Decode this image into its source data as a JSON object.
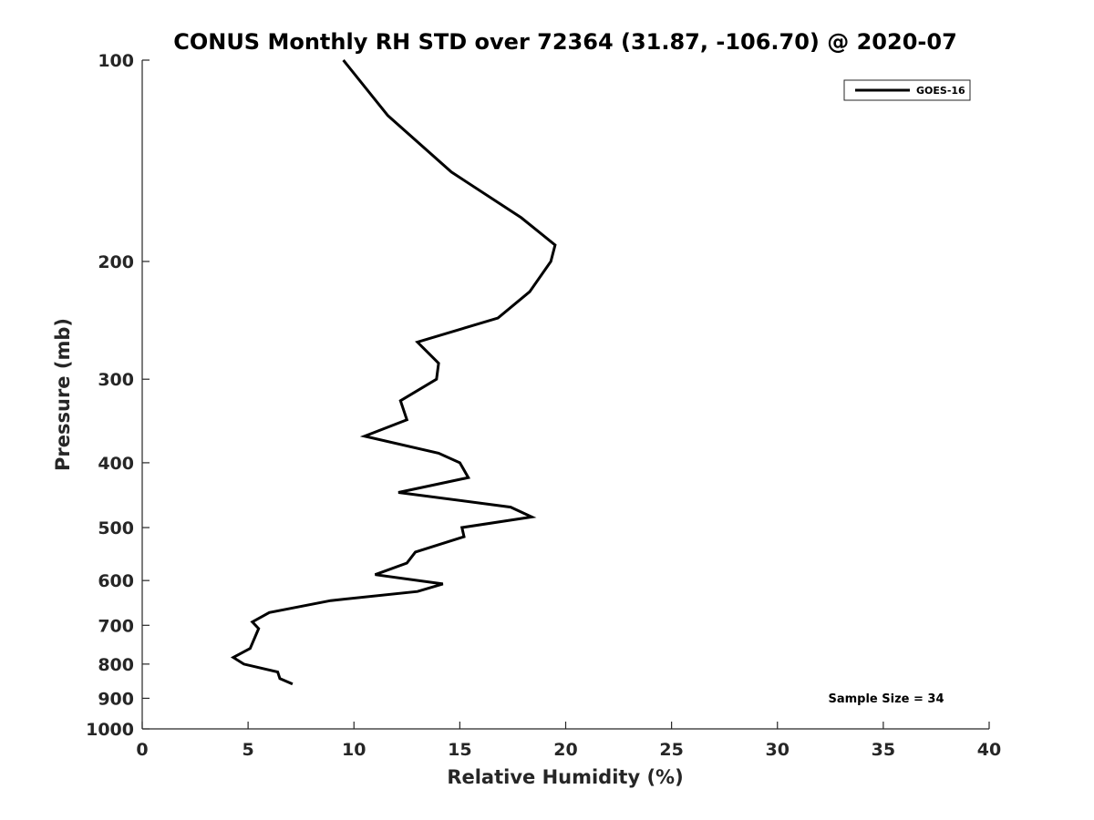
{
  "chart_data": {
    "type": "line",
    "title": "CONUS Monthly RH STD over 72364 (31.87, -106.70) @ 2020-07",
    "xlabel": "Relative Humidity (%)",
    "ylabel": "Pressure (mb)",
    "xlim": [
      0,
      40
    ],
    "ylim": [
      100,
      1000
    ],
    "y_scale": "log",
    "y_reversed": true,
    "grid": false,
    "xticks": [
      0,
      5,
      10,
      15,
      20,
      25,
      30,
      35,
      40
    ],
    "yticks": [
      100,
      200,
      300,
      400,
      500,
      600,
      700,
      800,
      900,
      1000
    ],
    "legend": {
      "placement": "top-right",
      "entries": [
        "GOES-16"
      ]
    },
    "annotation": "Sample Size = 34",
    "line_color": "#000000",
    "series": [
      {
        "name": "GOES-16",
        "points": [
          {
            "x": 9.5,
            "y": 100
          },
          {
            "x": 11.6,
            "y": 121
          },
          {
            "x": 14.6,
            "y": 147
          },
          {
            "x": 17.9,
            "y": 172
          },
          {
            "x": 19.5,
            "y": 189
          },
          {
            "x": 19.3,
            "y": 200
          },
          {
            "x": 18.3,
            "y": 222
          },
          {
            "x": 16.8,
            "y": 243
          },
          {
            "x": 13.0,
            "y": 264
          },
          {
            "x": 14.0,
            "y": 284
          },
          {
            "x": 13.9,
            "y": 300
          },
          {
            "x": 12.2,
            "y": 323
          },
          {
            "x": 12.5,
            "y": 345
          },
          {
            "x": 10.5,
            "y": 365
          },
          {
            "x": 14.0,
            "y": 387
          },
          {
            "x": 15.0,
            "y": 400
          },
          {
            "x": 15.4,
            "y": 421
          },
          {
            "x": 12.1,
            "y": 443
          },
          {
            "x": 17.4,
            "y": 466
          },
          {
            "x": 18.4,
            "y": 482
          },
          {
            "x": 15.1,
            "y": 500
          },
          {
            "x": 15.2,
            "y": 516
          },
          {
            "x": 12.9,
            "y": 544
          },
          {
            "x": 12.5,
            "y": 565
          },
          {
            "x": 11.0,
            "y": 588
          },
          {
            "x": 14.2,
            "y": 607
          },
          {
            "x": 13.0,
            "y": 623
          },
          {
            "x": 8.9,
            "y": 643
          },
          {
            "x": 6.0,
            "y": 670
          },
          {
            "x": 5.2,
            "y": 692
          },
          {
            "x": 5.5,
            "y": 708
          },
          {
            "x": 5.1,
            "y": 758
          },
          {
            "x": 4.3,
            "y": 782
          },
          {
            "x": 4.8,
            "y": 800
          },
          {
            "x": 6.4,
            "y": 822
          },
          {
            "x": 6.5,
            "y": 841
          },
          {
            "x": 7.1,
            "y": 857
          }
        ]
      }
    ]
  }
}
